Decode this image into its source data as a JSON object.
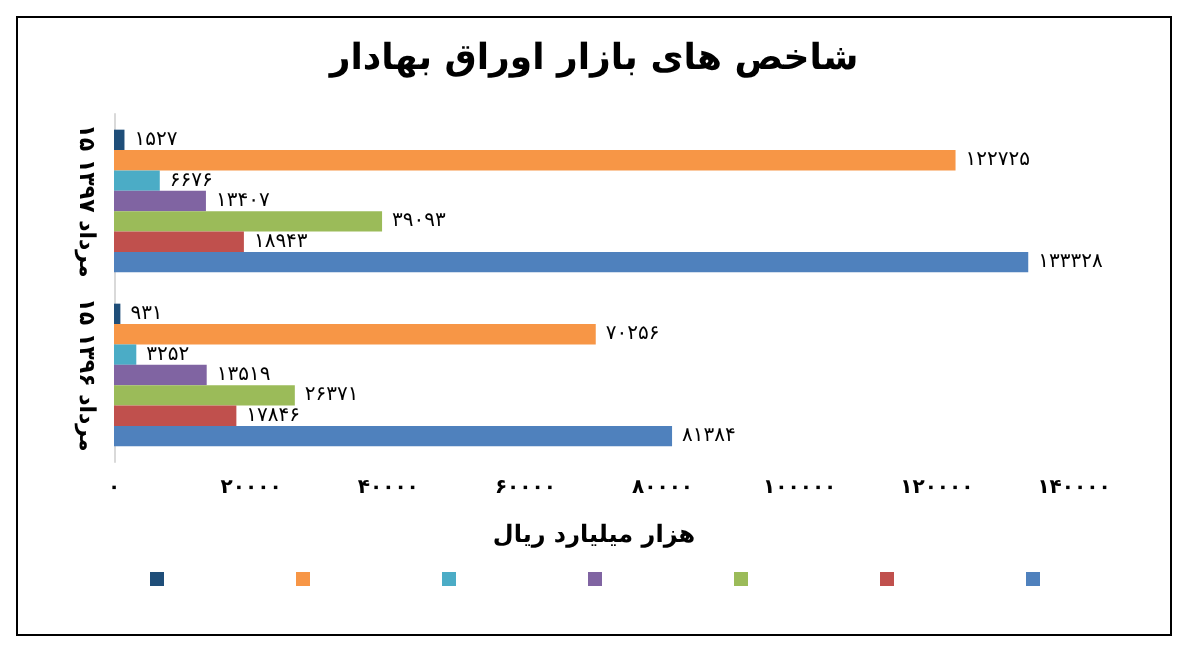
{
  "chart_data": {
    "type": "bar",
    "orientation": "horizontal",
    "title": "شاخص های بازار اوراق بهادار",
    "xlabel": "هزار میلیارد ریال",
    "categories": [
      "۱۵ مرداد ۱۳۹۷",
      "۱۵ مرداد ۱۳۹۶"
    ],
    "series": [
      {
        "color": "#1f4e79",
        "values": [
          1527,
          931
        ],
        "value_labels": [
          "۱۵۲۷",
          "۹۳۱"
        ]
      },
      {
        "color": "#f79646",
        "values": [
          122725,
          70256
        ],
        "value_labels": [
          "۱۲۲۷۲۵",
          "۷۰۲۵۶"
        ]
      },
      {
        "color": "#4bacc6",
        "values": [
          6676,
          3252
        ],
        "value_labels": [
          "۶۶۷۶",
          "۳۲۵۲"
        ]
      },
      {
        "color": "#8064a2",
        "values": [
          13407,
          13519
        ],
        "value_labels": [
          "۱۳۴۰۷",
          "۱۳۵۱۹"
        ]
      },
      {
        "color": "#9bbb59",
        "values": [
          39093,
          26371
        ],
        "value_labels": [
          "۳۹۰۹۳",
          "۲۶۳۷۱"
        ]
      },
      {
        "color": "#c0504d",
        "values": [
          18943,
          17846
        ],
        "value_labels": [
          "۱۸۹۴۳",
          "۱۷۸۴۶"
        ]
      },
      {
        "color": "#4f81bd",
        "values": [
          133328,
          81384
        ],
        "value_labels": [
          "۱۳۳۳۲۸",
          "۸۱۳۸۴"
        ]
      }
    ],
    "xlim": [
      0,
      140000
    ],
    "xticks": [
      {
        "value": 0,
        "label": "۰"
      },
      {
        "value": 20000,
        "label": "۲۰۰۰۰"
      },
      {
        "value": 40000,
        "label": "۴۰۰۰۰"
      },
      {
        "value": 60000,
        "label": "۶۰۰۰۰"
      },
      {
        "value": 80000,
        "label": "۸۰۰۰۰"
      },
      {
        "value": 100000,
        "label": "۱۰۰۰۰۰"
      },
      {
        "value": 120000,
        "label": "۱۲۰۰۰۰"
      },
      {
        "value": 140000,
        "label": "۱۴۰۰۰۰"
      }
    ],
    "grid": false
  }
}
